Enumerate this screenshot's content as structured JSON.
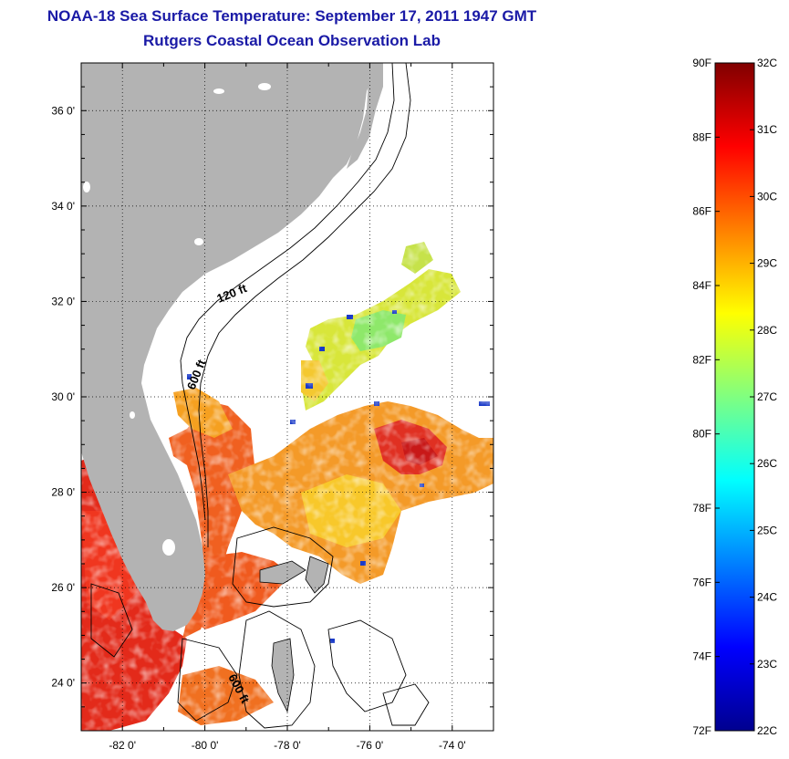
{
  "title": "NOAA-18 Sea Surface Temperature:  September 17, 2011 1947 GMT",
  "subtitle": "Rutgers Coastal Ocean Observation Lab",
  "map": {
    "lon_range": [
      -83,
      -73
    ],
    "lat_range": [
      23,
      37
    ],
    "lon_ticks": [
      -82,
      -80,
      -78,
      -76,
      -74
    ],
    "lat_ticks": [
      24,
      26,
      28,
      30,
      32,
      34,
      36
    ],
    "lon_tick_labels": [
      "-82 0'",
      "-80 0'",
      "-78 0'",
      "-76 0'",
      "-74 0'"
    ],
    "lat_tick_labels": [
      "24 0'",
      "26 0'",
      "28 0'",
      "30 0'",
      "32 0'",
      "34 0'",
      "36 0'"
    ],
    "grid": "dotted",
    "land_color": "#b3b3b3"
  },
  "contours": [
    {
      "label": "120 ft"
    },
    {
      "label": "600 ft"
    },
    {
      "label": "600 ft"
    }
  ],
  "colorbar": {
    "range_f": [
      72,
      90
    ],
    "range_c": [
      22,
      32
    ],
    "f_ticks": [
      72,
      74,
      76,
      78,
      80,
      82,
      84,
      86,
      88,
      90
    ],
    "c_ticks": [
      22,
      23,
      24,
      25,
      26,
      27,
      28,
      29,
      30,
      31,
      32
    ],
    "f_labels": [
      "72F",
      "74F",
      "76F",
      "78F",
      "80F",
      "82F",
      "84F",
      "86F",
      "88F",
      "90F"
    ],
    "c_labels": [
      "22C",
      "23C",
      "24C",
      "25C",
      "26C",
      "27C",
      "28C",
      "29C",
      "30C",
      "31C",
      "32C"
    ],
    "colormap": "jet"
  }
}
